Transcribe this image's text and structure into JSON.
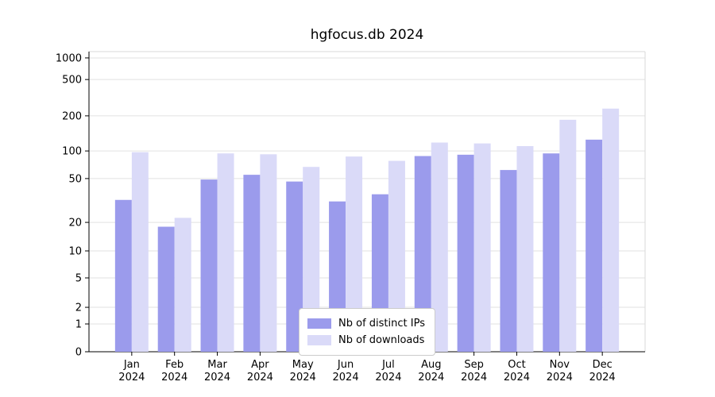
{
  "chart_data": {
    "type": "bar",
    "title": "hgfocus.db 2024",
    "categories": [
      "Jan",
      "Feb",
      "Mar",
      "Apr",
      "May",
      "Jun",
      "Jul",
      "Aug",
      "Sep",
      "Oct",
      "Nov",
      "Dec"
    ],
    "year_label": "2024",
    "series": [
      {
        "name": "Nb of distinct IPs",
        "color": "#9b9bec",
        "values": [
          32,
          18,
          49,
          55,
          47,
          31,
          36,
          88,
          91,
          62,
          94,
          125
        ]
      },
      {
        "name": "Nb of downloads",
        "color": "#dadaf8",
        "values": [
          97,
          22,
          94,
          92,
          67,
          87,
          78,
          118,
          116,
          110,
          185,
          240
        ]
      }
    ],
    "y_ticks": [
      0,
      1,
      2,
      5,
      10,
      20,
      50,
      100,
      200,
      500,
      1000
    ],
    "y_scale": "log-with-zero",
    "ylim": [
      0,
      1000
    ],
    "xlabel": "",
    "ylabel": "",
    "grid": true,
    "legend_position": "lower center",
    "grid_color": "#e2e2e2",
    "axis_color": "#000000",
    "box_color": "#d9d9d9"
  }
}
